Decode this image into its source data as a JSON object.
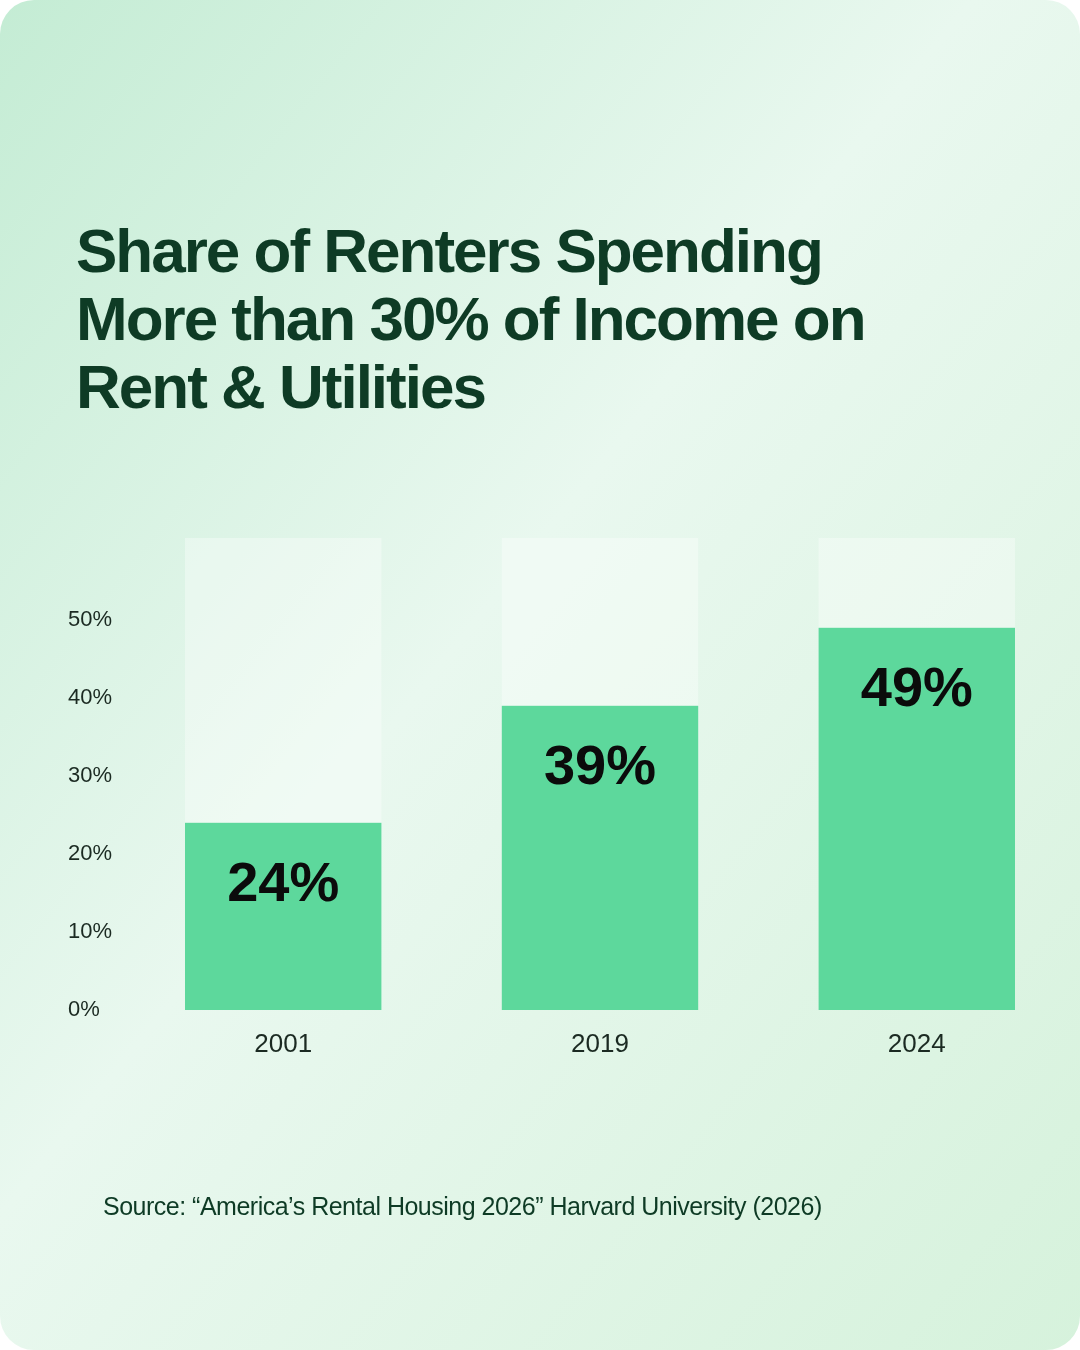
{
  "chart_data": {
    "type": "bar",
    "title": "Share of Renters Spending More than 30% of Income on Rent & Utilities",
    "categories": [
      "2001",
      "2019",
      "2024"
    ],
    "values": [
      24,
      39,
      49
    ],
    "value_labels": [
      "24%",
      "39%",
      "49%"
    ],
    "color": "#5dd89c",
    "ylim": [
      0,
      50
    ],
    "yticks": [
      {
        "value": 0,
        "label": "0%"
      },
      {
        "value": 10,
        "label": "10%"
      },
      {
        "value": 20,
        "label": "20%"
      },
      {
        "value": 30,
        "label": "30%"
      },
      {
        "value": 40,
        "label": "40%"
      },
      {
        "value": 50,
        "label": "50%"
      }
    ],
    "grid": false,
    "annotations": [
      "Source: “America’s Rental Housing 2026” Harvard University (2026)"
    ]
  }
}
